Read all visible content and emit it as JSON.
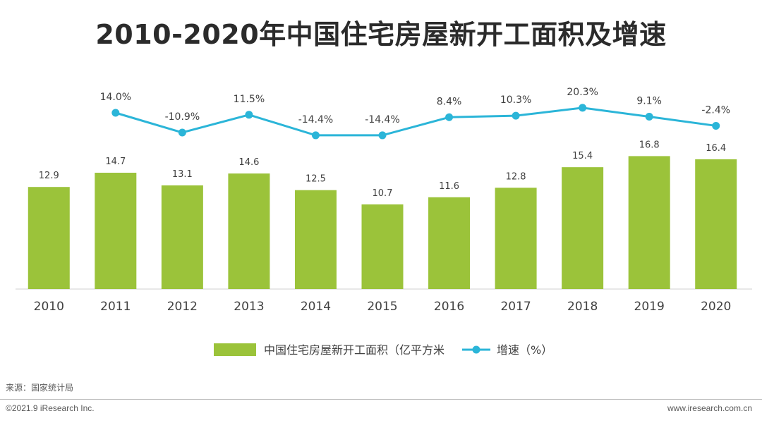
{
  "title": "2010-2020年中国住宅房屋新开工面积及增速",
  "chart_data": {
    "type": "bar+line",
    "title": "2010-2020年中国住宅房屋新开工面积及增速",
    "categories": [
      "2010",
      "2011",
      "2012",
      "2013",
      "2014",
      "2015",
      "2016",
      "2017",
      "2018",
      "2019",
      "2020"
    ],
    "series": [
      {
        "name": "中国住宅房屋新开工面积（亿平方米",
        "type": "bar",
        "color": "#9bc33a",
        "values": [
          12.9,
          14.7,
          13.1,
          14.6,
          12.5,
          10.7,
          11.6,
          12.8,
          15.4,
          16.8,
          16.4
        ],
        "labels": [
          "12.9",
          "14.7",
          "13.1",
          "14.6",
          "12.5",
          "10.7",
          "11.6",
          "12.8",
          "15.4",
          "16.8",
          "16.4"
        ]
      },
      {
        "name": "增速（%）",
        "type": "line",
        "color": "#2bb5d8",
        "x": [
          "2011",
          "2012",
          "2013",
          "2014",
          "2015",
          "2016",
          "2017",
          "2018",
          "2019",
          "2020"
        ],
        "values": [
          14.0,
          -10.9,
          11.5,
          -14.4,
          -14.4,
          8.4,
          10.3,
          20.3,
          9.1,
          -2.4
        ],
        "labels": [
          "14.0%",
          "-10.9%",
          "11.5%",
          "-14.4%",
          "-14.4%",
          "8.4%",
          "10.3%",
          "20.3%",
          "9.1%",
          "-2.4%"
        ]
      }
    ],
    "bar_ylim": [
      0,
      18
    ],
    "line_ylim": [
      -40,
      60
    ],
    "legend": "bottom-center"
  },
  "footer": {
    "source": "来源：国家统计局",
    "copyright": "©2021.9 iResearch Inc.",
    "website": "www.iresearch.com.cn"
  }
}
